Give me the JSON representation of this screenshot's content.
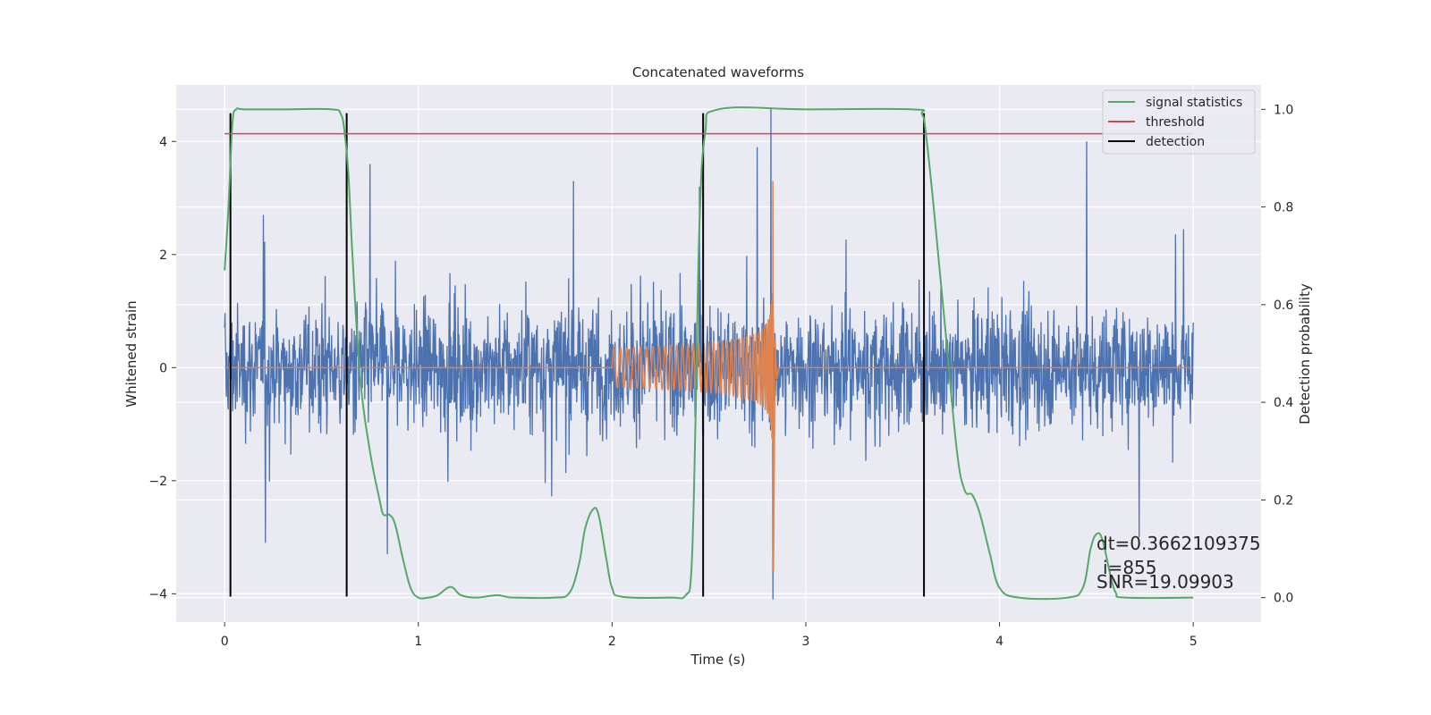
{
  "chart_data": {
    "type": "line",
    "title": "Concatenated waveforms",
    "xlabel": "Time (s)",
    "ylabel_left": "Whitened strain",
    "ylabel_right": "Detection probability",
    "xlim": [
      -0.25,
      5.35
    ],
    "ylim_left": [
      -4.5,
      5.0
    ],
    "ylim_right": [
      -0.05,
      1.05
    ],
    "x_ticks": [
      0,
      1,
      2,
      3,
      4,
      5
    ],
    "x_tick_labels": [
      "0",
      "1",
      "2",
      "3",
      "4",
      "5"
    ],
    "y_left_ticks": [
      -4,
      -2,
      0,
      2,
      4
    ],
    "y_left_tick_labels": [
      "−4",
      "−2",
      "0",
      "2",
      "4"
    ],
    "y_right_ticks": [
      0.0,
      0.2,
      0.4,
      0.6,
      0.8,
      1.0
    ],
    "y_right_tick_labels": [
      "0.0",
      "0.2",
      "0.4",
      "0.6",
      "0.8",
      "1.0"
    ],
    "grid": true,
    "legend_position": "top-right",
    "legend": [
      {
        "label": "signal statistics",
        "color": "#55a868"
      },
      {
        "label": "threshold",
        "color": "#c44e52"
      },
      {
        "label": "detection",
        "color": "#000000"
      }
    ],
    "colors": {
      "noise": "#4c72b0",
      "chirp": "#dd8452",
      "signal_statistics": "#55a868",
      "threshold": "#c44e52",
      "detection": "#000000",
      "plot_background": "#eaeaf2"
    },
    "noise_series": {
      "x_range": [
        0,
        5
      ],
      "typical_amplitude": 1.0,
      "spike_peaks": [
        {
          "x": 0.2,
          "y": 2.7
        },
        {
          "x": 0.75,
          "y": 3.6
        },
        {
          "x": 1.8,
          "y": 3.3
        },
        {
          "x": 2.45,
          "y": 3.2
        },
        {
          "x": 2.75,
          "y": 3.9
        },
        {
          "x": 2.82,
          "y": 4.6
        },
        {
          "x": 2.83,
          "y": -4.1
        },
        {
          "x": 4.45,
          "y": 4.0
        },
        {
          "x": 0.21,
          "y": -3.1
        },
        {
          "x": 0.84,
          "y": -3.3
        },
        {
          "x": 4.72,
          "y": -3.0
        }
      ]
    },
    "chirp_series": {
      "start_x": 2.0,
      "merger_x": 2.83,
      "start_amplitude": 0.35,
      "peak_max": 3.3,
      "peak_min": -3.6
    },
    "signal_statistics": {
      "x": [
        0.0,
        0.02,
        0.04,
        0.06,
        0.1,
        0.3,
        0.55,
        0.6,
        0.62,
        0.64,
        0.66,
        0.7,
        0.75,
        0.8,
        0.82,
        0.85,
        0.88,
        0.92,
        0.96,
        1.0,
        1.05,
        1.1,
        1.15,
        1.18,
        1.22,
        1.3,
        1.4,
        1.45,
        1.5,
        1.7,
        1.78,
        1.83,
        1.86,
        1.9,
        1.93,
        1.97,
        2.0,
        2.05,
        2.3,
        2.38,
        2.41,
        2.43,
        2.45,
        2.48,
        2.55,
        3.0,
        3.55,
        3.6,
        3.62,
        3.66,
        3.72,
        3.78,
        3.82,
        3.86,
        3.9,
        3.95,
        4.0,
        4.1,
        4.35,
        4.43,
        4.47,
        4.5,
        4.53,
        4.57,
        4.6,
        4.65,
        5.0
      ],
      "y": [
        0.67,
        0.8,
        0.97,
        1.0,
        1.0,
        1.0,
        1.0,
        0.99,
        0.95,
        0.86,
        0.7,
        0.45,
        0.3,
        0.2,
        0.17,
        0.17,
        0.15,
        0.08,
        0.02,
        0.0,
        0.0,
        0.005,
        0.02,
        0.02,
        0.005,
        0.0,
        0.005,
        0.002,
        0.0,
        0.0,
        0.01,
        0.07,
        0.14,
        0.18,
        0.17,
        0.08,
        0.02,
        0.002,
        0.0,
        0.005,
        0.06,
        0.35,
        0.75,
        0.95,
        1.0,
        1.0,
        1.0,
        0.99,
        0.95,
        0.8,
        0.55,
        0.3,
        0.22,
        0.21,
        0.17,
        0.09,
        0.02,
        0.0,
        0.0,
        0.02,
        0.1,
        0.13,
        0.12,
        0.05,
        0.01,
        0.0,
        0.0
      ]
    },
    "threshold": {
      "value": 0.95,
      "x_range": [
        0,
        5
      ]
    },
    "detections_x": [
      0.03,
      0.63,
      2.47,
      3.61
    ],
    "detection_y_range": [
      -4.05,
      4.5
    ],
    "annotations": [
      "dt=0.3662109375",
      "i=855",
      "SNR=19.09903"
    ]
  }
}
